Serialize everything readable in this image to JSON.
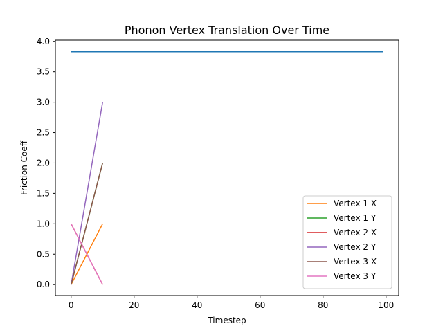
{
  "chart_data": {
    "type": "line",
    "title": "Phonon Vertex Translation Over Time",
    "xlabel": "Timestep",
    "ylabel": "Friction Coeff",
    "xlim": [
      -5,
      104
    ],
    "ylim": [
      -0.18,
      4.02
    ],
    "xticks": [
      0,
      20,
      40,
      60,
      80,
      100
    ],
    "yticks": [
      0.0,
      0.5,
      1.0,
      1.5,
      2.0,
      2.5,
      3.0,
      3.5,
      4.0
    ],
    "xtick_labels": [
      "0",
      "20",
      "40",
      "60",
      "80",
      "100"
    ],
    "ytick_labels": [
      "0.0",
      "0.5",
      "1.0",
      "1.5",
      "2.0",
      "2.5",
      "3.0",
      "3.5",
      "4.0"
    ],
    "grid": false,
    "legend_position": "lower right",
    "series": [
      {
        "color": "#1f77b4",
        "x": [
          0,
          99
        ],
        "y": [
          3.83,
          3.83
        ]
      },
      {
        "name": "Vertex 1 X",
        "color": "#ff7f0e",
        "x": [
          0,
          10
        ],
        "y": [
          0,
          1
        ]
      },
      {
        "name": "Vertex 1 Y",
        "color": "#2ca02c",
        "x": [
          0,
          10
        ],
        "y": [
          0,
          2
        ]
      },
      {
        "name": "Vertex 2 X",
        "color": "#d62728",
        "x": [
          0,
          10
        ],
        "y": [
          1,
          0
        ]
      },
      {
        "name": "Vertex 2 Y",
        "color": "#9467bd",
        "x": [
          0,
          10
        ],
        "y": [
          0,
          3
        ]
      },
      {
        "name": "Vertex 3 X",
        "color": "#8c564b",
        "x": [
          0,
          10
        ],
        "y": [
          0,
          2
        ]
      },
      {
        "name": "Vertex 3 Y",
        "color": "#e377c2",
        "x": [
          0,
          10
        ],
        "y": [
          1,
          0
        ]
      }
    ]
  }
}
